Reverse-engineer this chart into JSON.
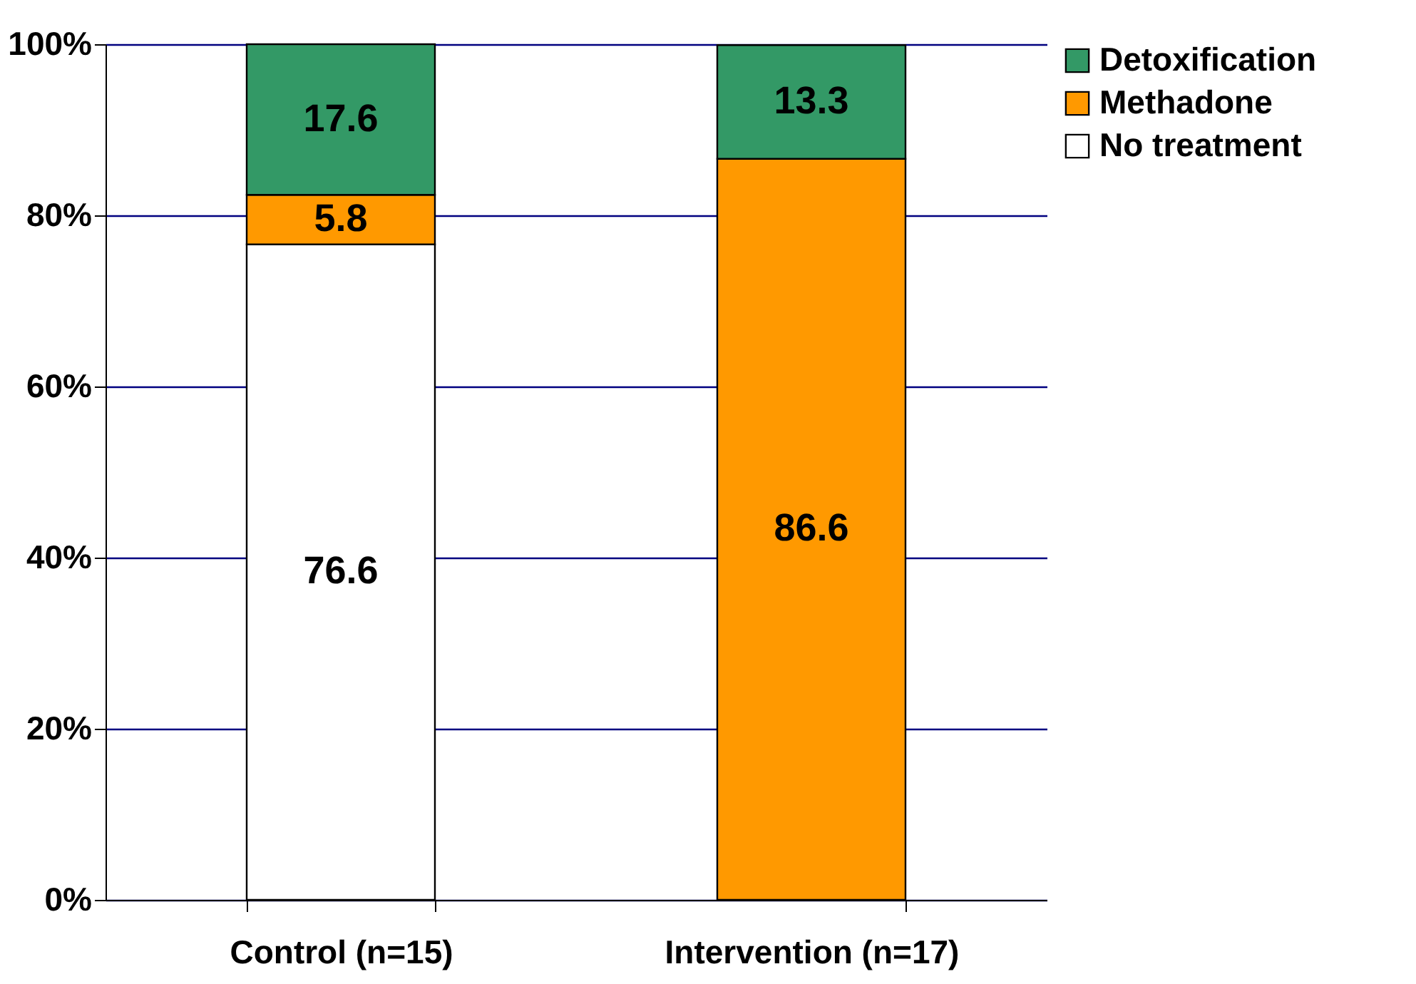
{
  "chart_data": {
    "type": "bar",
    "stacked": true,
    "categories": [
      "Control (n=15)",
      "Intervention (n=17)"
    ],
    "series": [
      {
        "name": "No treatment",
        "color": "#ffffff",
        "values": [
          76.6,
          null
        ]
      },
      {
        "name": "Methadone",
        "color": "#ff9900",
        "values": [
          5.8,
          86.6
        ]
      },
      {
        "name": "Detoxification",
        "color": "#339966",
        "values": [
          17.6,
          13.3
        ]
      }
    ],
    "ylim": [
      0,
      100
    ],
    "yticks": [
      {
        "value": 0,
        "label": "0%"
      },
      {
        "value": 20,
        "label": "20%"
      },
      {
        "value": 40,
        "label": "40%"
      },
      {
        "value": 60,
        "label": "60%"
      },
      {
        "value": 80,
        "label": "80%"
      },
      {
        "value": 100,
        "label": "100%"
      }
    ],
    "grid": "y",
    "legend": "right",
    "data_labels": true
  }
}
